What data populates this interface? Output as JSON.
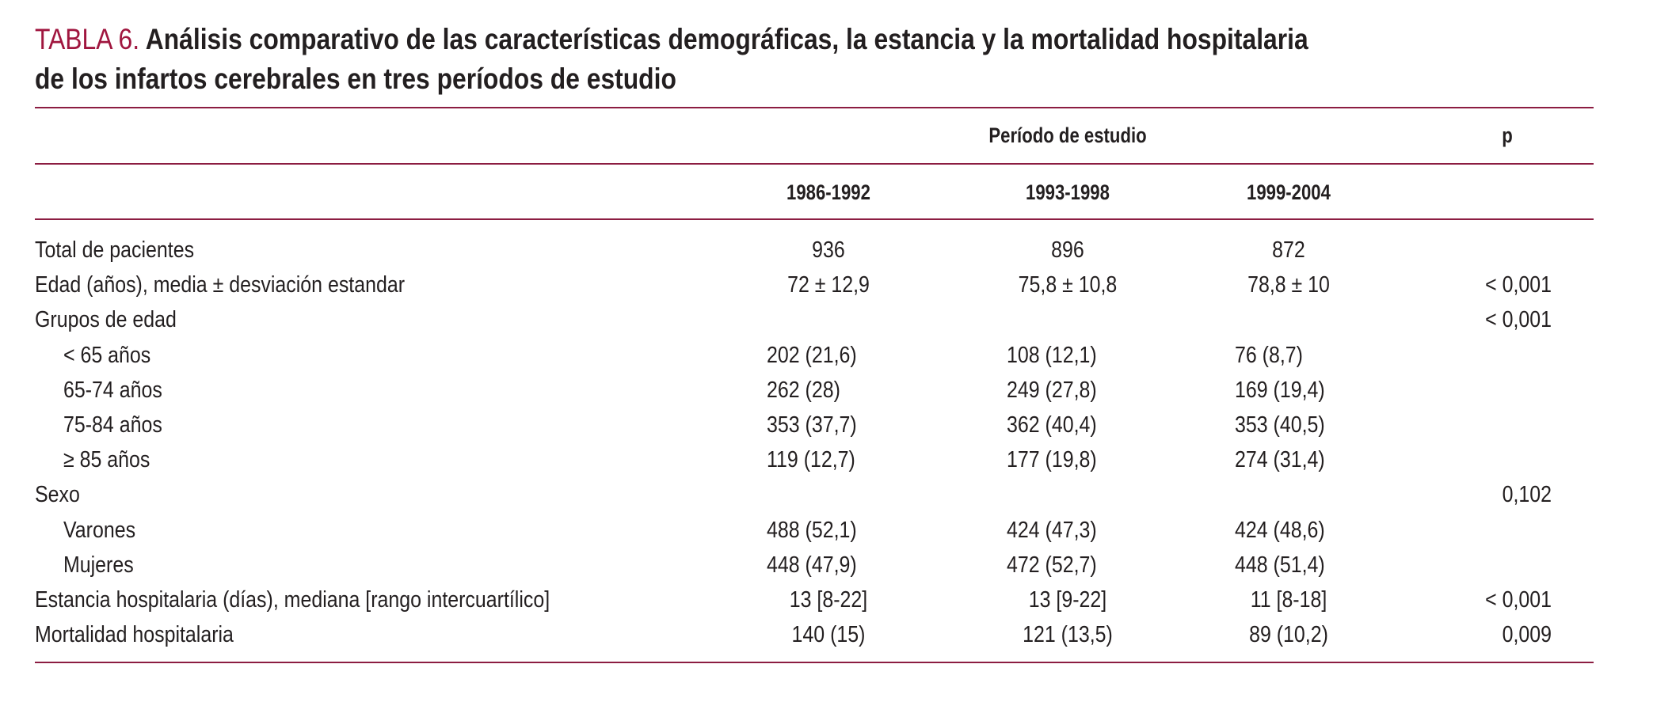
{
  "title": {
    "label": "TABLA 6.",
    "line1": "Análisis comparativo de las características demográficas, la estancia y la mortalidad hospitalaria",
    "line2": "de los infartos cerebrales en tres períodos de estudio"
  },
  "header": {
    "group": "Período de estudio",
    "p": "p",
    "periods": [
      "1986-1992",
      "1993-1998",
      "1999-2004"
    ]
  },
  "colors": {
    "rule": "#8c1d42",
    "label": "#a0163f"
  },
  "rows": [
    {
      "label": "Total de pacientes",
      "indent": false,
      "values": [
        "936",
        "896",
        "872"
      ],
      "p": ""
    },
    {
      "label": "Edad (años), media ± desviación estandar",
      "indent": false,
      "values": [
        "72 ± 12,9",
        "75,8 ± 10,8",
        "78,8 ± 10"
      ],
      "p": "< 0,001"
    },
    {
      "label": "Grupos de edad",
      "indent": false,
      "values": [
        "",
        "",
        ""
      ],
      "p": "< 0,001"
    },
    {
      "label": "< 65 años",
      "indent": true,
      "values": [
        "202 (21,6)",
        "108 (12,1)",
        "76 (8,7)"
      ],
      "p": ""
    },
    {
      "label": "65-74 años",
      "indent": true,
      "values": [
        "262 (28)",
        "249 (27,8)",
        "169 (19,4)"
      ],
      "p": ""
    },
    {
      "label": "75-84 años",
      "indent": true,
      "values": [
        "353 (37,7)",
        "362 (40,4)",
        "353 (40,5)"
      ],
      "p": ""
    },
    {
      "label": "≥ 85 años",
      "indent": true,
      "values": [
        "119 (12,7)",
        "177 (19,8)",
        "274 (31,4)"
      ],
      "p": ""
    },
    {
      "label": "Sexo",
      "indent": false,
      "values": [
        "",
        "",
        ""
      ],
      "p": "0,102"
    },
    {
      "label": "Varones",
      "indent": true,
      "values": [
        "488 (52,1)",
        "424 (47,3)",
        "424 (48,6)"
      ],
      "p": ""
    },
    {
      "label": "Mujeres",
      "indent": true,
      "values": [
        "448 (47,9)",
        "472 (52,7)",
        "448 (51,4)"
      ],
      "p": ""
    },
    {
      "label": "Estancia hospitalaria (días), mediana [rango intercuartílico]",
      "indent": false,
      "values": [
        "13 [8-22]",
        "13 [9-22]",
        "11 [8-18]"
      ],
      "p": "< 0,001"
    },
    {
      "label": "Mortalidad hospitalaria",
      "indent": false,
      "values": [
        "140 (15)",
        "121 (13,5)",
        "89 (10,2)"
      ],
      "p": "0,009"
    }
  ]
}
